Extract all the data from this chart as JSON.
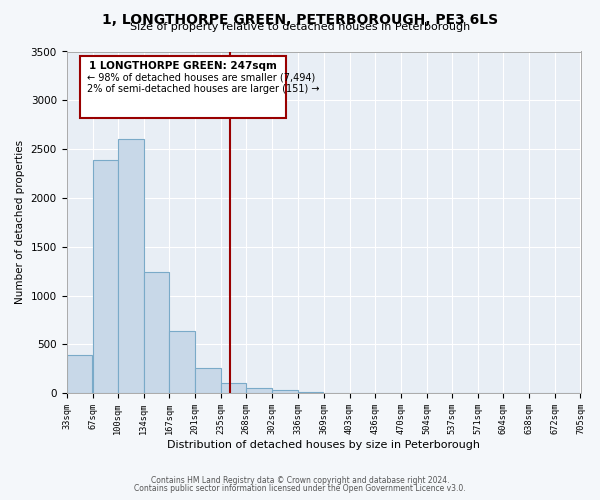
{
  "title": "1, LONGTHORPE GREEN, PETERBOROUGH, PE3 6LS",
  "subtitle": "Size of property relative to detached houses in Peterborough",
  "xlabel": "Distribution of detached houses by size in Peterborough",
  "ylabel": "Number of detached properties",
  "footnote1": "Contains HM Land Registry data © Crown copyright and database right 2024.",
  "footnote2": "Contains public sector information licensed under the Open Government Licence v3.0.",
  "bar_left_edges": [
    33,
    67,
    100,
    134,
    167,
    201,
    235,
    268,
    302,
    336,
    369,
    403,
    436,
    470,
    504,
    537,
    571,
    604,
    638,
    672
  ],
  "bar_widths": [
    34,
    33,
    34,
    33,
    34,
    34,
    33,
    34,
    34,
    33,
    34,
    33,
    34,
    34,
    33,
    34,
    33,
    34,
    34,
    33
  ],
  "bar_heights": [
    390,
    2390,
    2600,
    1240,
    640,
    260,
    100,
    55,
    30,
    10,
    5,
    2,
    0,
    0,
    0,
    0,
    0,
    0,
    0,
    0
  ],
  "bar_color": "#c8d8e8",
  "bar_edge_color": "#7aaac8",
  "x_tick_labels": [
    "33sqm",
    "67sqm",
    "100sqm",
    "134sqm",
    "167sqm",
    "201sqm",
    "235sqm",
    "268sqm",
    "302sqm",
    "336sqm",
    "369sqm",
    "403sqm",
    "436sqm",
    "470sqm",
    "504sqm",
    "537sqm",
    "571sqm",
    "604sqm",
    "638sqm",
    "672sqm",
    "705sqm"
  ],
  "x_tick_positions": [
    33,
    67,
    100,
    134,
    167,
    201,
    235,
    268,
    302,
    336,
    369,
    403,
    436,
    470,
    504,
    537,
    571,
    604,
    638,
    672,
    705
  ],
  "ylim": [
    0,
    3500
  ],
  "xlim": [
    33,
    705
  ],
  "vline_x": 247,
  "vline_color": "#990000",
  "annotation_title": "1 LONGTHORPE GREEN: 247sqm",
  "annotation_line1": "← 98% of detached houses are smaller (7,494)",
  "annotation_line2": "2% of semi-detached houses are larger (151) →",
  "bg_color": "#f4f7fa",
  "plot_bg_color": "#e8eef5"
}
